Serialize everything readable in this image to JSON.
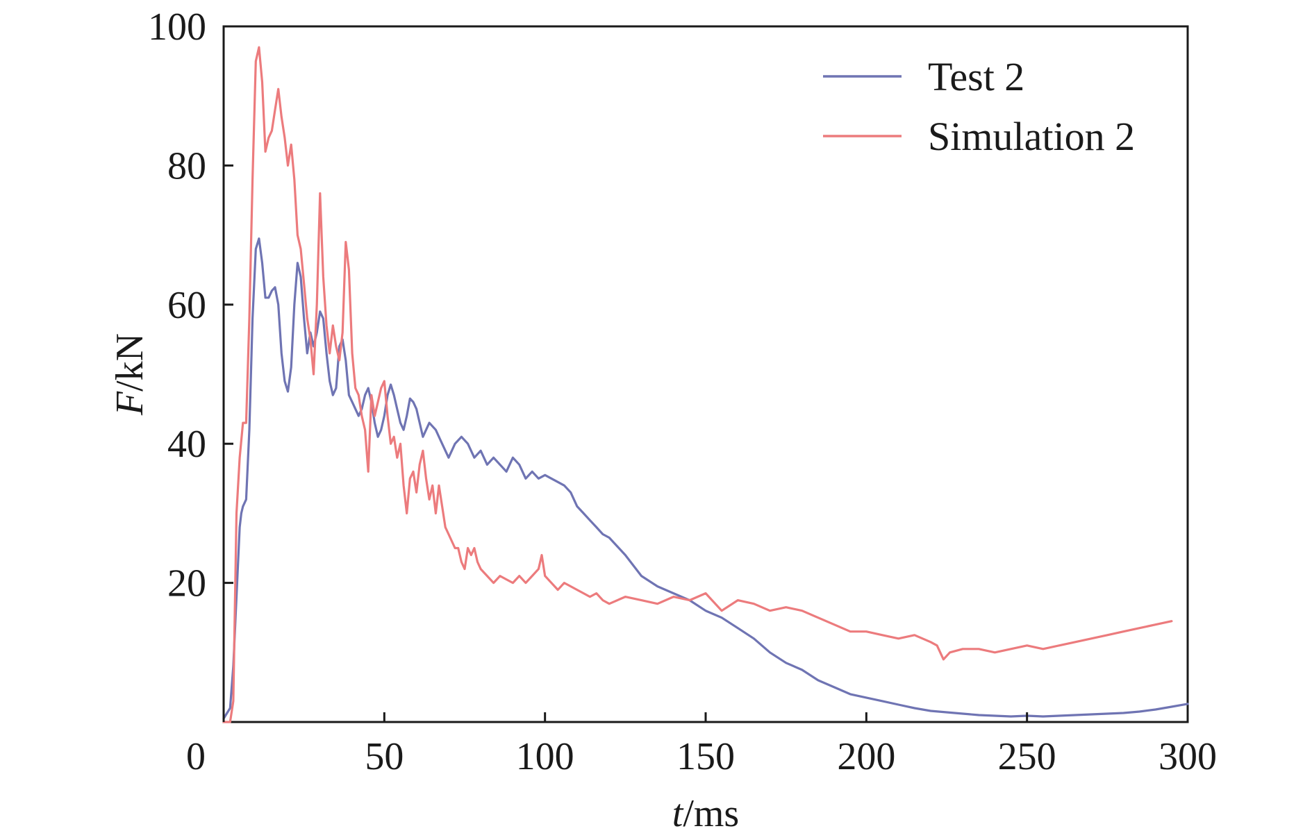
{
  "chart_data": {
    "type": "line",
    "xlabel": {
      "italic": "t",
      "rest": "/ms"
    },
    "ylabel": {
      "italic": "F",
      "rest": "/kN"
    },
    "xlim": [
      0,
      300
    ],
    "ylim": [
      0,
      100
    ],
    "xticks": [
      0,
      50,
      100,
      150,
      200,
      250,
      300
    ],
    "yticks": [
      20,
      40,
      60,
      80,
      100
    ],
    "grid": false,
    "legend_position": "top-right",
    "series": [
      {
        "name": "Test 2",
        "color": "#6f74b3",
        "x": [
          0,
          2,
          3,
          4,
          5,
          5.5,
          6,
          7,
          8,
          9,
          10,
          11,
          12,
          13,
          14,
          15,
          16,
          17,
          18,
          19,
          20,
          21,
          22,
          23,
          24,
          25,
          26,
          27,
          28,
          29,
          30,
          31,
          32,
          33,
          34,
          35,
          36,
          37,
          38,
          39,
          40,
          41,
          42,
          43,
          44,
          45,
          46,
          47,
          48,
          49,
          50,
          51,
          52,
          53,
          54,
          55,
          56,
          57,
          58,
          59,
          60,
          62,
          64,
          66,
          68,
          70,
          72,
          74,
          76,
          78,
          80,
          82,
          84,
          86,
          88,
          90,
          92,
          94,
          96,
          98,
          100,
          102,
          104,
          106,
          108,
          110,
          112,
          114,
          116,
          118,
          120,
          125,
          130,
          135,
          140,
          145,
          150,
          155,
          160,
          165,
          170,
          175,
          180,
          185,
          190,
          195,
          200,
          205,
          210,
          215,
          220,
          225,
          230,
          235,
          240,
          245,
          250,
          255,
          260,
          265,
          270,
          275,
          280,
          285,
          290,
          295,
          300
        ],
        "y": [
          0.5,
          2,
          8,
          18,
          28,
          30,
          31,
          32,
          42,
          58,
          68,
          69.5,
          66,
          61,
          61,
          62,
          62.5,
          60,
          53,
          49,
          47.5,
          51,
          60,
          66,
          64,
          58,
          53,
          56,
          54,
          56,
          59,
          58,
          53,
          49,
          47,
          48,
          54,
          55,
          52,
          47,
          46,
          45,
          44,
          45,
          47,
          48,
          46,
          43,
          41,
          42,
          44,
          47,
          48.5,
          47,
          45,
          43,
          42,
          44,
          46.5,
          46,
          45,
          41,
          43,
          42,
          40,
          38,
          40,
          41,
          40,
          38,
          39,
          37,
          38,
          37,
          36,
          38,
          37,
          35,
          36,
          35,
          35.5,
          35,
          34.5,
          34,
          33,
          31,
          30,
          29,
          28,
          27,
          26.5,
          24,
          21,
          19.5,
          18.5,
          17.5,
          16,
          15,
          13.5,
          12,
          10,
          8.5,
          7.5,
          6,
          5,
          4,
          3.5,
          3,
          2.5,
          2,
          1.6,
          1.4,
          1.2,
          1.0,
          0.9,
          0.8,
          0.9,
          0.8,
          0.9,
          1.0,
          1.1,
          1.2,
          1.3,
          1.5,
          1.8,
          2.2,
          2.6
        ]
      },
      {
        "name": "Simulation 2",
        "color": "#ec7b7d",
        "x": [
          0,
          1,
          2,
          3,
          4,
          5,
          6,
          7,
          8,
          9,
          10,
          11,
          12,
          13,
          14,
          15,
          16,
          17,
          18,
          19,
          20,
          21,
          22,
          23,
          24,
          25,
          26,
          27,
          28,
          29,
          30,
          31,
          32,
          33,
          34,
          35,
          36,
          37,
          38,
          39,
          40,
          41,
          42,
          43,
          44,
          45,
          46,
          47,
          48,
          49,
          50,
          51,
          52,
          53,
          54,
          55,
          56,
          57,
          58,
          59,
          60,
          61,
          62,
          63,
          64,
          65,
          66,
          67,
          68,
          69,
          70,
          71,
          72,
          73,
          74,
          75,
          76,
          77,
          78,
          79,
          80,
          82,
          84,
          86,
          88,
          90,
          92,
          94,
          96,
          98,
          99,
          100,
          102,
          104,
          106,
          108,
          110,
          112,
          114,
          116,
          118,
          120,
          125,
          130,
          135,
          140,
          145,
          150,
          155,
          160,
          165,
          170,
          175,
          180,
          185,
          190,
          195,
          200,
          205,
          210,
          215,
          220,
          222,
          224,
          226,
          230,
          235,
          240,
          245,
          250,
          255,
          260,
          265,
          270,
          275,
          280,
          285,
          290,
          295
        ],
        "y": [
          0,
          0,
          0,
          3,
          30,
          38,
          43,
          43,
          58,
          78,
          95,
          97,
          92,
          82,
          84,
          85,
          88,
          91,
          87,
          84,
          80,
          83,
          78,
          70,
          68,
          63,
          58,
          55,
          50,
          60,
          76,
          64,
          57,
          53,
          57,
          54,
          52,
          56,
          69,
          65,
          53,
          48,
          47,
          44,
          42,
          36,
          47,
          44,
          46,
          48,
          49,
          44,
          40,
          41,
          38,
          40,
          34,
          30,
          35,
          36,
          33,
          37,
          39,
          35,
          32,
          34,
          30,
          34,
          31,
          28,
          27,
          26,
          25,
          25,
          23,
          22,
          25,
          24,
          25,
          23,
          22,
          21,
          20,
          21,
          20.5,
          20,
          21,
          20,
          21,
          22,
          24,
          21,
          20,
          19,
          20,
          19.5,
          19,
          18.5,
          18,
          18.5,
          17.5,
          17,
          18,
          17.5,
          17,
          18,
          17.5,
          18.5,
          16,
          17.5,
          17,
          16,
          16.5,
          16,
          15,
          14,
          13,
          13,
          12.5,
          12,
          12.5,
          11.5,
          11,
          9,
          10,
          10.5,
          10.5,
          10,
          10.5,
          11,
          10.5,
          11,
          11.5,
          12,
          12.5,
          13,
          13.5,
          14,
          14.5
        ]
      }
    ]
  }
}
